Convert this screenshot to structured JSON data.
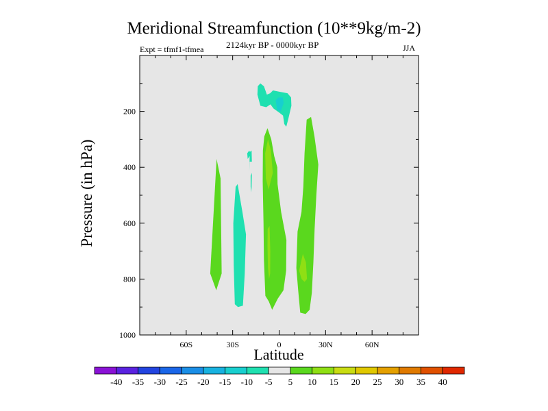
{
  "chart_data": {
    "type": "contour",
    "title": "Meridional Streamfunction (10**9kg/m-2)",
    "experiment": "Expt = tfmf1-tfmea",
    "period": "2124kyr BP - 0000kyr BP",
    "season": "JJA",
    "xlabel": "Latitude",
    "ylabel": "Pressure (in hPa)",
    "xlim": [
      -90,
      90
    ],
    "ylim": [
      1000,
      0
    ],
    "x_ticks": [
      {
        "value": -60,
        "label": "60S"
      },
      {
        "value": -30,
        "label": "30S"
      },
      {
        "value": 0,
        "label": "0"
      },
      {
        "value": 30,
        "label": "30N"
      },
      {
        "value": 60,
        "label": "60N"
      }
    ],
    "y_ticks": [
      {
        "value": 200,
        "label": "200"
      },
      {
        "value": 400,
        "label": "400"
      },
      {
        "value": 600,
        "label": "600"
      },
      {
        "value": 800,
        "label": "800"
      },
      {
        "value": 1000,
        "label": "1000"
      }
    ],
    "background_color": "#e6e6e6",
    "colorbar": {
      "labels": [
        "-40",
        "-35",
        "-30",
        "-25",
        "-20",
        "-15",
        "-10",
        "-5",
        "5",
        "10",
        "15",
        "20",
        "25",
        "30",
        "35",
        "40"
      ],
      "colors": [
        "#8a12d6",
        "#5a22e0",
        "#2244e0",
        "#1a66e8",
        "#1a8ee6",
        "#18b2e0",
        "#18cfcf",
        "#1fe0b0",
        "#e6e6e6",
        "#5ad81e",
        "#8fdf14",
        "#c9dc12",
        "#e0c800",
        "#e4a000",
        "#e07a00",
        "#e05000",
        "#e02800"
      ]
    },
    "regions": [
      {
        "name": "positive-band-sh-60",
        "level": "5 to 10",
        "color": "#5ad81e",
        "points": [
          [
            -44.5,
            780
          ],
          [
            -40.4,
            370
          ],
          [
            -37.8,
            440
          ],
          [
            -37.1,
            780
          ],
          [
            -40.6,
            840
          ]
        ]
      },
      {
        "name": "negative-band-sh-30",
        "level": "-10 to -5",
        "color": "#1fe0b0",
        "points": [
          [
            -29.6,
            600
          ],
          [
            -28.1,
            470
          ],
          [
            -26.8,
            460
          ],
          [
            -23.7,
            560
          ],
          [
            -21.4,
            640
          ],
          [
            -22.2,
            780
          ],
          [
            -23.4,
            895
          ],
          [
            -26.6,
            900
          ],
          [
            -28.6,
            890
          ],
          [
            -29.3,
            750
          ]
        ]
      },
      {
        "name": "negative-sliver-20s-upper",
        "level": "-10 to -5",
        "color": "#1fe0b0",
        "points": [
          [
            -20.6,
            350
          ],
          [
            -19.3,
            340
          ],
          [
            -18.9,
            345
          ],
          [
            -17.8,
            340
          ],
          [
            -17.6,
            380
          ],
          [
            -19.2,
            380
          ],
          [
            -19.3,
            420
          ],
          [
            -19.0,
            360
          ],
          [
            -20.3,
            370
          ]
        ]
      },
      {
        "name": "negative-sliver-20s-lower",
        "level": "-10 to -5",
        "color": "#1fe0b0",
        "points": [
          [
            -18.4,
            430
          ],
          [
            -17.6,
            420
          ],
          [
            -17.8,
            470
          ],
          [
            -18.0,
            490
          ],
          [
            -18.4,
            470
          ]
        ]
      },
      {
        "name": "negative-cell-upper-tropics-outer",
        "level": "-10 to -5",
        "color": "#1fe0b0",
        "points": [
          [
            -13.8,
            110
          ],
          [
            -12.1,
            100
          ],
          [
            -9.8,
            110
          ],
          [
            -7.9,
            140
          ],
          [
            -5.8,
            135
          ],
          [
            -4.0,
            125
          ],
          [
            0.4,
            130
          ],
          [
            5.4,
            135
          ],
          [
            7.7,
            150
          ],
          [
            7.9,
            180
          ],
          [
            5.8,
            230
          ],
          [
            4.6,
            255
          ],
          [
            3.3,
            245
          ],
          [
            2.5,
            215
          ],
          [
            0.2,
            205
          ],
          [
            -3.6,
            190
          ],
          [
            -5.6,
            175
          ],
          [
            -8.3,
            185
          ],
          [
            -12.1,
            180
          ],
          [
            -14.0,
            140
          ]
        ]
      },
      {
        "name": "negative-cell-upper-tropics-inner",
        "level": "-15 to -10",
        "color": "#18cfcf",
        "points": [
          [
            -2.2,
            160
          ],
          [
            -0.4,
            150
          ],
          [
            2.3,
            150
          ],
          [
            2.9,
            170
          ],
          [
            1.0,
            200
          ],
          [
            -1.3,
            195
          ]
        ]
      },
      {
        "name": "positive-band-equator",
        "level": "5 to 10",
        "color": "#5ad81e",
        "points": [
          [
            -10.5,
            340
          ],
          [
            -9.6,
            290
          ],
          [
            -7.5,
            260
          ],
          [
            -5.1,
            300
          ],
          [
            -3.2,
            360
          ],
          [
            -1.2,
            400
          ],
          [
            -1.0,
            460
          ],
          [
            1.3,
            560
          ],
          [
            4.7,
            660
          ],
          [
            4.5,
            770
          ],
          [
            2.8,
            840
          ],
          [
            -0.9,
            870
          ],
          [
            -4.5,
            910
          ],
          [
            -6.7,
            880
          ],
          [
            -8.9,
            860
          ],
          [
            -9.8,
            730
          ],
          [
            -10.1,
            600
          ],
          [
            -10.6,
            450
          ]
        ]
      },
      {
        "name": "positive-core-equator-upper",
        "level": "10 to 15",
        "color": "#8fdf14",
        "points": [
          [
            -9.0,
            350
          ],
          [
            -7.2,
            300
          ],
          [
            -5.3,
            340
          ],
          [
            -4.1,
            420
          ],
          [
            -6.8,
            480
          ],
          [
            -8.6,
            440
          ]
        ]
      },
      {
        "name": "positive-core-equator-lower",
        "level": "10 to 15",
        "color": "#8fdf14",
        "points": [
          [
            -7.4,
            620
          ],
          [
            -6.2,
            610
          ],
          [
            -5.7,
            700
          ],
          [
            -5.8,
            780
          ],
          [
            -6.5,
            800
          ],
          [
            -7.2,
            760
          ],
          [
            -7.5,
            680
          ]
        ]
      },
      {
        "name": "positive-band-20n",
        "level": "5 to 10",
        "color": "#5ad81e",
        "points": [
          [
            16.4,
            350
          ],
          [
            17.8,
            230
          ],
          [
            20.6,
            220
          ],
          [
            22.8,
            290
          ],
          [
            25.3,
            390
          ],
          [
            24.0,
            500
          ],
          [
            22.9,
            620
          ],
          [
            22.1,
            740
          ],
          [
            21.1,
            850
          ],
          [
            19.7,
            910
          ],
          [
            17.1,
            925
          ],
          [
            13.6,
            920
          ],
          [
            12.3,
            840
          ],
          [
            11.1,
            760
          ],
          [
            11.9,
            630
          ],
          [
            14.4,
            560
          ],
          [
            15.6,
            470
          ]
        ]
      },
      {
        "name": "positive-core-20n",
        "level": "10 to 15",
        "color": "#8fdf14",
        "points": [
          [
            12.9,
            770
          ],
          [
            15.3,
            710
          ],
          [
            17.3,
            740
          ],
          [
            18.0,
            800
          ],
          [
            16.4,
            810
          ],
          [
            14.5,
            800
          ]
        ]
      }
    ]
  }
}
